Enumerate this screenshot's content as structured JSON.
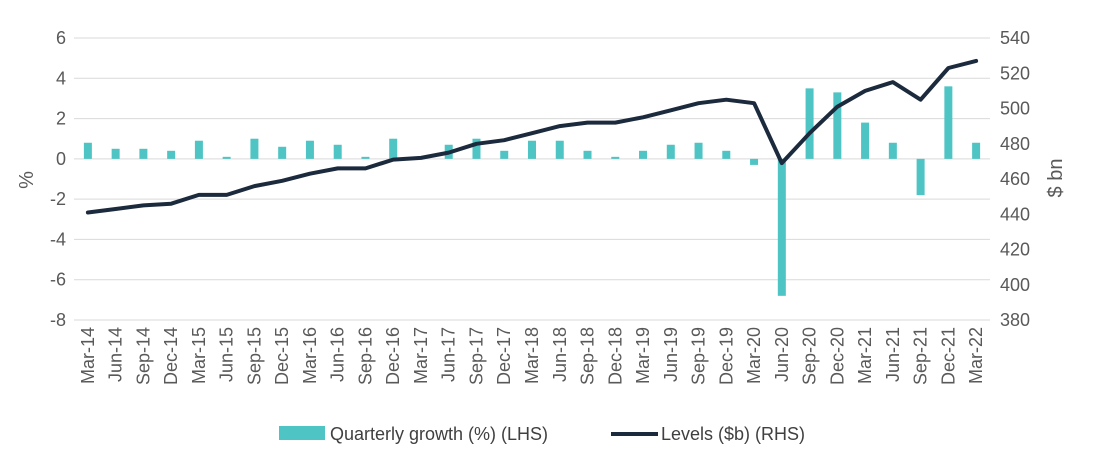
{
  "chart_data": {
    "type": "bar",
    "title": "",
    "ylabel_left": "%",
    "ylabel_right": "$ bn",
    "ylim_left": [
      -8,
      6
    ],
    "yticks_left": [
      6,
      4,
      2,
      0,
      -2,
      -4,
      -6,
      -8
    ],
    "ylim_right": [
      380,
      540
    ],
    "yticks_right": [
      540,
      520,
      500,
      480,
      460,
      440,
      420,
      400,
      380
    ],
    "grid": true,
    "legend_position": "bottom",
    "categories": [
      "Mar-14",
      "Jun-14",
      "Sep-14",
      "Dec-14",
      "Mar-15",
      "Jun-15",
      "Sep-15",
      "Dec-15",
      "Mar-16",
      "Jun-16",
      "Sep-16",
      "Dec-16",
      "Mar-17",
      "Jun-17",
      "Sep-17",
      "Dec-17",
      "Mar-18",
      "Jun-18",
      "Sep-18",
      "Dec-18",
      "Mar-19",
      "Jun-19",
      "Sep-19",
      "Dec-19",
      "Mar-20",
      "Jun-20",
      "Sep-20",
      "Dec-20",
      "Mar-21",
      "Jun-21",
      "Sep-21",
      "Dec-21",
      "Mar-22"
    ],
    "series": [
      {
        "name": "Quarterly growth (%) (LHS)",
        "type": "bar",
        "axis": "left",
        "color": "#4fc4c4",
        "values": [
          0.8,
          0.5,
          0.5,
          0.4,
          0.9,
          0.1,
          1.0,
          0.6,
          0.9,
          0.7,
          0.1,
          1.0,
          0.0,
          0.7,
          1.0,
          0.4,
          0.9,
          0.9,
          0.4,
          0.1,
          0.4,
          0.7,
          0.8,
          0.4,
          -0.3,
          -6.8,
          3.5,
          3.3,
          1.8,
          0.8,
          -1.8,
          3.6,
          0.8
        ]
      },
      {
        "name": "Levels ($b) (RHS)",
        "type": "line",
        "axis": "right",
        "color": "#1c2a3d",
        "values": [
          441,
          443,
          445,
          446,
          451,
          451,
          456,
          459,
          463,
          466,
          466,
          471,
          472,
          475,
          480,
          482,
          486,
          490,
          492,
          492,
          495,
          499,
          503,
          505,
          503,
          469,
          486,
          501,
          510,
          515,
          505,
          523,
          527
        ]
      }
    ]
  }
}
